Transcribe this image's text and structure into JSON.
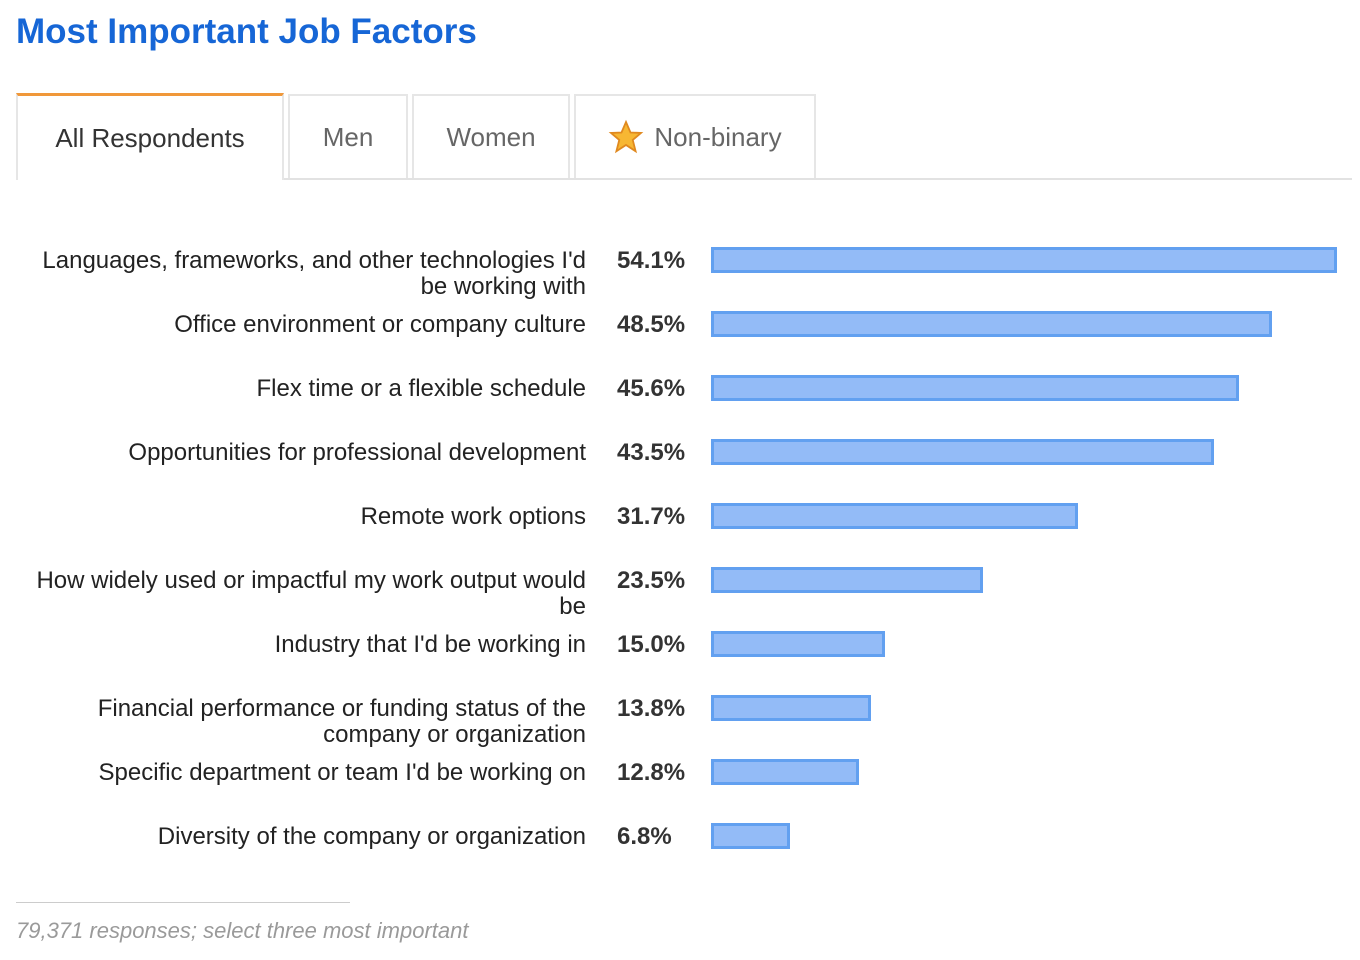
{
  "title": "Most Important Job Factors",
  "tabs": [
    "All Respondents",
    "Men",
    "Women",
    "Non-binary"
  ],
  "chart_data": {
    "type": "bar",
    "orientation": "horizontal",
    "categories": [
      "Languages, frameworks, and other technologies I'd be working with",
      "Office environment or company culture",
      "Flex time or a flexible schedule",
      "Opportunities for professional development",
      "Remote work options",
      "How widely used or impactful my work output would be",
      "Industry that I'd be working in",
      "Financial performance or funding status of the company or organization",
      "Specific department or team I'd be working on",
      "Diversity of the company or organization"
    ],
    "values": [
      54.1,
      48.5,
      45.6,
      43.5,
      31.7,
      23.5,
      15.0,
      13.8,
      12.8,
      6.8
    ],
    "value_labels": [
      "54.1%",
      "48.5%",
      "45.6%",
      "43.5%",
      "31.7%",
      "23.5%",
      "15.0%",
      "13.8%",
      "12.8%",
      "6.8%"
    ],
    "color": "#93bbf7"
  },
  "footnote": "79,371 responses; select three most important"
}
